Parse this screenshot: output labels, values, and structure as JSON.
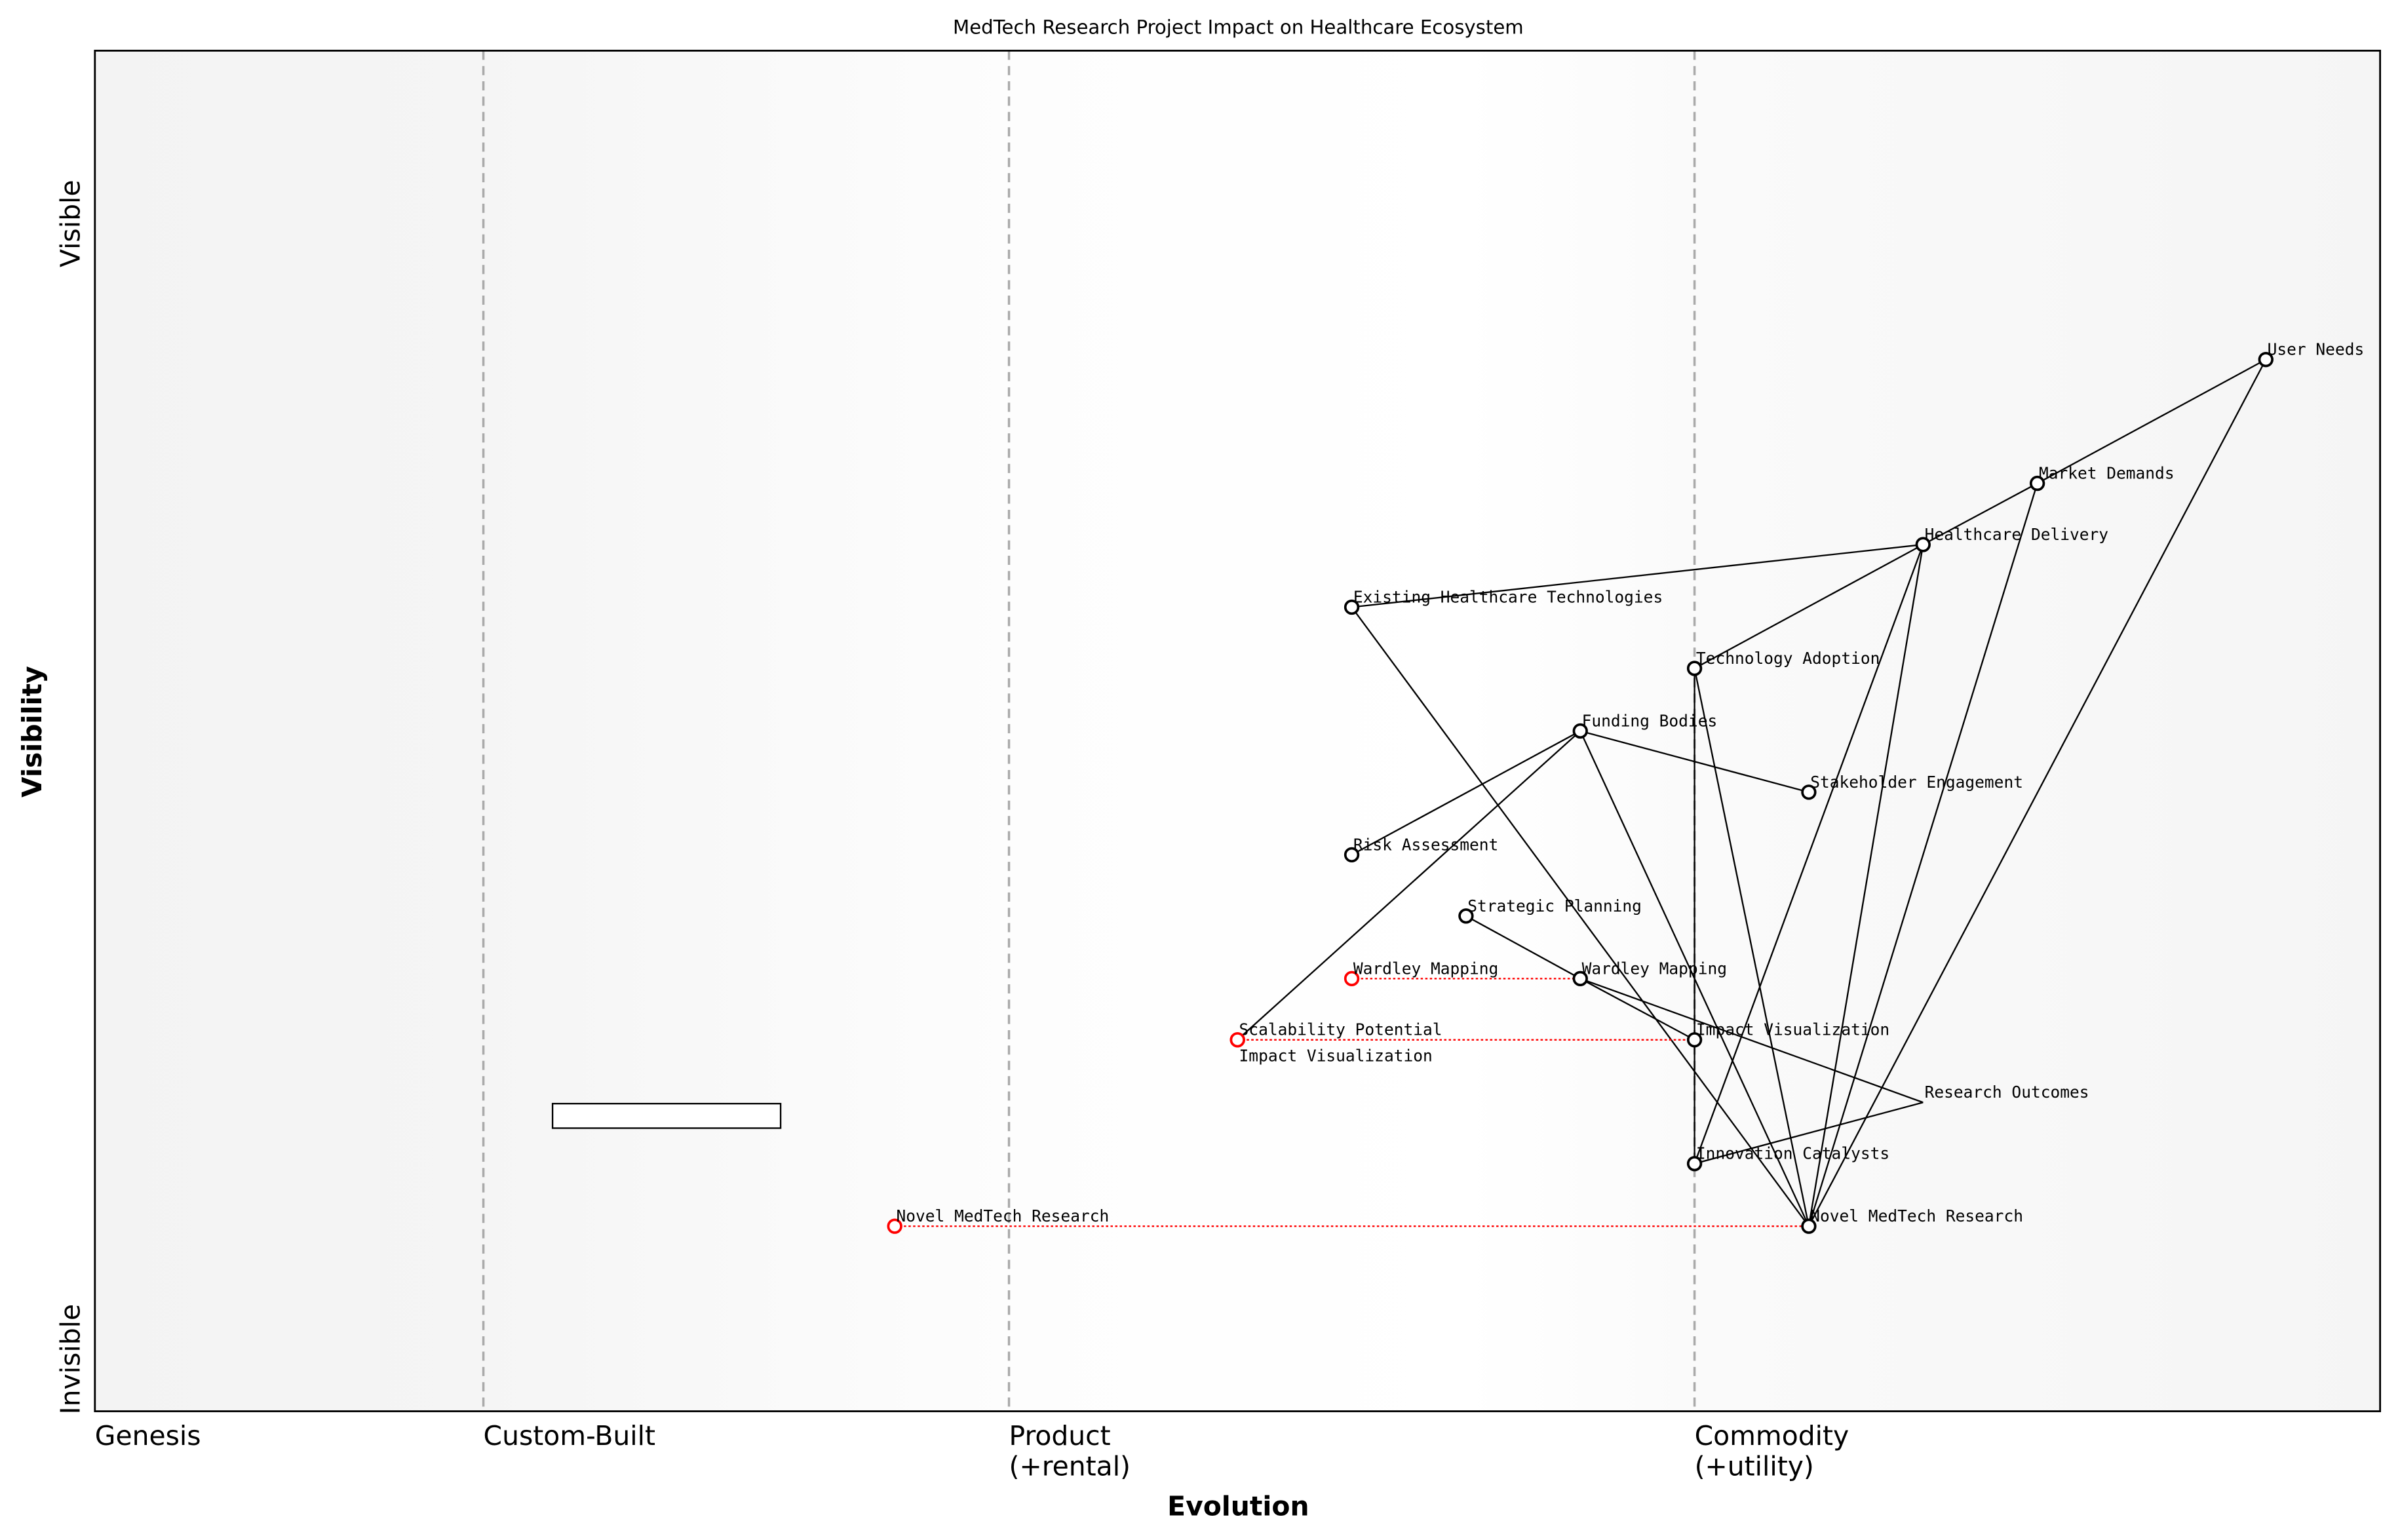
{
  "title": "MedTech Research Project Impact on Healthcare Ecosystem",
  "x_axis": {
    "label": "Evolution",
    "stages": [
      {
        "label": "Genesis",
        "sub": "",
        "position": 0.0
      },
      {
        "label": "Custom-Built",
        "sub": "",
        "position": 0.17
      },
      {
        "label": "Product",
        "sub": "(+rental)",
        "position": 0.4
      },
      {
        "label": "Commodity",
        "sub": "(+utility)",
        "position": 0.7
      }
    ]
  },
  "y_axis": {
    "label": "Visibility",
    "top_label": "Visible",
    "bottom_label": "Invisible"
  },
  "colors": {
    "node": "#000000",
    "evolved": "#ff0000",
    "divider": "#aaaaaa",
    "link": "#000000"
  },
  "components": [
    {
      "name": "User Needs",
      "evolution": 0.95,
      "visibility": 0.773
    },
    {
      "name": "Market Demands",
      "evolution": 0.85,
      "visibility": 0.682
    },
    {
      "name": "Healthcare Delivery",
      "evolution": 0.8,
      "visibility": 0.637
    },
    {
      "name": "Existing Healthcare Technologies",
      "evolution": 0.55,
      "visibility": 0.591
    },
    {
      "name": "Technology Adoption",
      "evolution": 0.7,
      "visibility": 0.546
    },
    {
      "name": "Funding Bodies",
      "evolution": 0.65,
      "visibility": 0.5
    },
    {
      "name": "Stakeholder Engagement",
      "evolution": 0.75,
      "visibility": 0.455
    },
    {
      "name": "Risk Assessment",
      "evolution": 0.55,
      "visibility": 0.409
    },
    {
      "name": "Strategic Planning",
      "evolution": 0.6,
      "visibility": 0.364
    },
    {
      "name": "Wardley Mapping",
      "evolution": 0.65,
      "visibility": 0.318
    },
    {
      "name": "Impact Visualization",
      "evolution": 0.7,
      "visibility": 0.273
    },
    {
      "name": "Research Outcomes",
      "evolution": 0.8,
      "visibility": 0.227,
      "hidden_marker": true
    },
    {
      "name": "Innovation Catalysts",
      "evolution": 0.7,
      "visibility": 0.182
    },
    {
      "name": "Novel MedTech Research",
      "evolution": 0.75,
      "visibility": 0.136
    }
  ],
  "evolved": [
    {
      "name": "Wardley Mapping",
      "evolution": 0.55,
      "visibility": 0.318,
      "target": "Wardley Mapping"
    },
    {
      "name": "Scalability Potential",
      "evolution": 0.5,
      "visibility": 0.273,
      "target": "Impact Visualization"
    },
    {
      "name": "Impact Visualization",
      "evolution": 0.5,
      "visibility": 0.273,
      "target": "Impact Visualization"
    },
    {
      "name": "Novel MedTech Research",
      "evolution": 0.35,
      "visibility": 0.136,
      "target": "Novel MedTech Research"
    }
  ],
  "links": [
    [
      "User Needs",
      "Market Demands"
    ],
    [
      "User Needs",
      "Novel MedTech Research"
    ],
    [
      "Market Demands",
      "Healthcare Delivery"
    ],
    [
      "Market Demands",
      "Novel MedTech Research"
    ],
    [
      "Healthcare Delivery",
      "Existing Healthcare Technologies"
    ],
    [
      "Healthcare Delivery",
      "Technology Adoption"
    ],
    [
      "Healthcare Delivery",
      "Innovation Catalysts"
    ],
    [
      "Healthcare Delivery",
      "Novel MedTech Research"
    ],
    [
      "Existing Healthcare Technologies",
      "Novel MedTech Research"
    ],
    [
      "Technology Adoption",
      "Innovation Catalysts"
    ],
    [
      "Technology Adoption",
      "Novel MedTech Research"
    ],
    [
      "Funding Bodies",
      "Stakeholder Engagement"
    ],
    [
      "Funding Bodies",
      "Risk Assessment"
    ],
    [
      "Funding Bodies",
      "Scalability Potential"
    ],
    [
      "Funding Bodies",
      "Novel MedTech Research"
    ],
    [
      "Strategic Planning",
      "Wardley Mapping"
    ],
    [
      "Wardley Mapping",
      "Impact Visualization"
    ],
    [
      "Wardley Mapping",
      "Research Outcomes"
    ],
    [
      "Research Outcomes",
      "Innovation Catalysts"
    ]
  ]
}
